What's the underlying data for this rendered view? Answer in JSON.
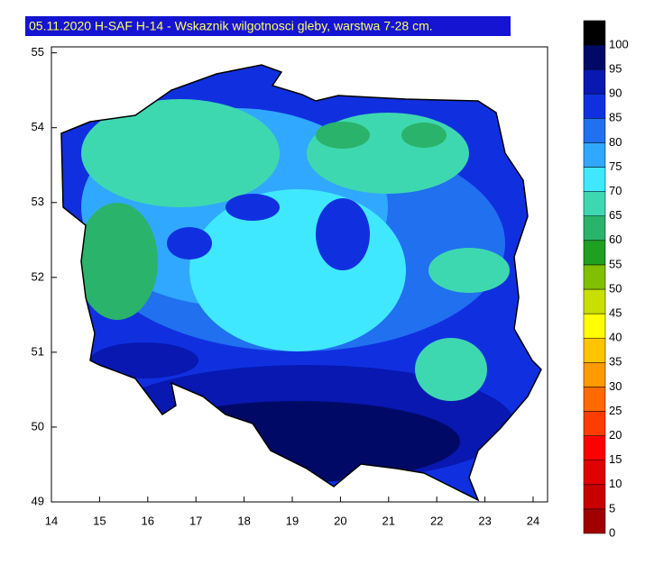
{
  "title": "05.11.2020 H-SAF H-14 - Wskaznik wilgotnosci gleby, warstwa 7-28 cm.",
  "map": {
    "xlim": [
      14,
      24.3
    ],
    "ylim": [
      49,
      55.08
    ],
    "xticks": [
      14,
      15,
      16,
      17,
      18,
      19,
      20,
      21,
      22,
      23,
      24
    ],
    "yticks": [
      49,
      50,
      51,
      52,
      53,
      54,
      55
    ]
  },
  "colorbar": {
    "levels": [
      0,
      5,
      10,
      15,
      20,
      25,
      30,
      35,
      40,
      45,
      50,
      55,
      60,
      65,
      70,
      75,
      80,
      85,
      90,
      95,
      100
    ],
    "colors": [
      "#a00000",
      "#c80000",
      "#e00000",
      "#ff0000",
      "#ff3c00",
      "#ff6a00",
      "#ff9a00",
      "#ffc400",
      "#ffff00",
      "#c8e000",
      "#80c000",
      "#20a020",
      "#2ab36a",
      "#3ed8b0",
      "#40e8ff",
      "#30a8ff",
      "#2070f0",
      "#1030e0",
      "#0818b0",
      "#000a66",
      "#000000"
    ]
  }
}
